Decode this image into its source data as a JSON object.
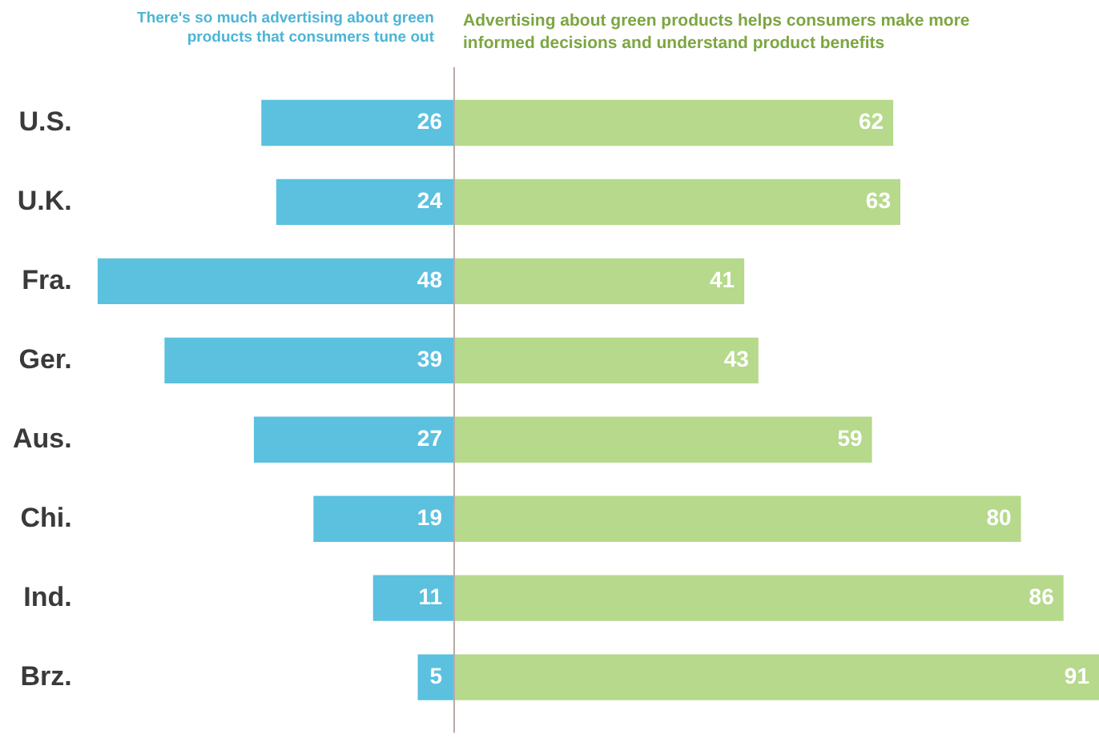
{
  "chart_data": [
    {
      "type": "bar",
      "orientation": "horizontal",
      "title": "There's so much advertising about green products that consumers tune out",
      "categories": [
        "U.S.",
        "U.K.",
        "Fra.",
        "Ger.",
        "Aus.",
        "Chi.",
        "Ind.",
        "Brz."
      ],
      "series": [
        {
          "color": "#5bc1df",
          "values": [
            26,
            24,
            48,
            39,
            27,
            19,
            11,
            5
          ]
        }
      ],
      "xlim": [
        48,
        0
      ],
      "data_labels": true,
      "tick_labels": "y",
      "grid": false,
      "legend": false
    },
    {
      "type": "bar",
      "orientation": "horizontal",
      "title": "Advertising about green products helps consumers make more informed decisions and understand product benefits",
      "categories": [
        null,
        null,
        null,
        null,
        null,
        null,
        null,
        null
      ],
      "series": [
        {
          "color": "#b6d98c",
          "values": [
            62,
            63,
            41,
            43,
            59,
            80,
            86,
            91
          ]
        }
      ],
      "xlim": [
        0,
        91
      ],
      "data_labels": true,
      "tick_labels": false,
      "grid": false,
      "legend": false
    }
  ]
}
